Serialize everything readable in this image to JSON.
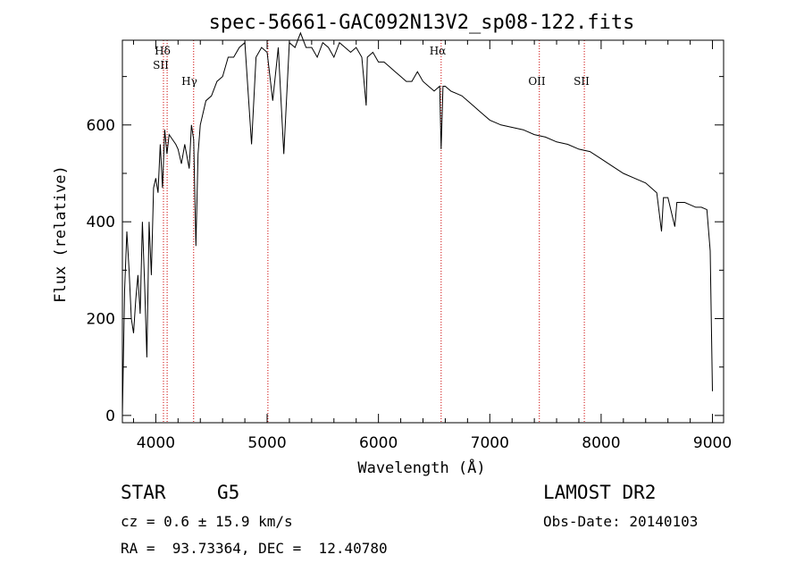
{
  "colors": {
    "axis": "#000000",
    "spectrum": "#000000",
    "marker_line": "#cc0000",
    "background": "#ffffff"
  },
  "chart_data": {
    "type": "line",
    "title": "spec-56661-GAC092N13V2_sp08-122.fits",
    "xlabel": "Wavelength (Å)",
    "ylabel": "Flux (relative)",
    "xlim": [
      3700,
      9100
    ],
    "ylim": [
      -15,
      775
    ],
    "x_ticks": [
      4000,
      5000,
      6000,
      7000,
      8000,
      9000
    ],
    "y_ticks": [
      0,
      200,
      400,
      600
    ],
    "series": [
      {
        "name": "flux",
        "x": [
          3700,
          3720,
          3740,
          3760,
          3780,
          3800,
          3820,
          3840,
          3860,
          3880,
          3900,
          3920,
          3940,
          3960,
          3980,
          4000,
          4020,
          4040,
          4060,
          4080,
          4100,
          4120,
          4150,
          4180,
          4200,
          4230,
          4260,
          4300,
          4320,
          4340,
          4360,
          4380,
          4400,
          4450,
          4500,
          4550,
          4600,
          4650,
          4700,
          4750,
          4800,
          4860,
          4900,
          4950,
          5000,
          5050,
          5100,
          5150,
          5200,
          5250,
          5300,
          5350,
          5400,
          5450,
          5500,
          5550,
          5600,
          5650,
          5700,
          5750,
          5800,
          5850,
          5890,
          5900,
          5950,
          6000,
          6050,
          6100,
          6150,
          6200,
          6250,
          6300,
          6350,
          6400,
          6450,
          6500,
          6550,
          6563,
          6580,
          6600,
          6650,
          6700,
          6750,
          6800,
          6850,
          6900,
          6950,
          7000,
          7100,
          7200,
          7300,
          7400,
          7500,
          7600,
          7700,
          7800,
          7900,
          8000,
          8100,
          8200,
          8300,
          8400,
          8450,
          8500,
          8542,
          8560,
          8600,
          8662,
          8680,
          8700,
          8750,
          8800,
          8850,
          8900,
          8950,
          8980,
          9000
        ],
        "y": [
          0,
          260,
          380,
          300,
          200,
          170,
          240,
          290,
          210,
          400,
          270,
          120,
          400,
          290,
          470,
          490,
          460,
          560,
          470,
          590,
          540,
          580,
          570,
          560,
          550,
          520,
          560,
          510,
          600,
          570,
          350,
          540,
          600,
          650,
          660,
          690,
          700,
          740,
          740,
          760,
          770,
          560,
          740,
          760,
          750,
          650,
          760,
          540,
          770,
          760,
          790,
          760,
          760,
          740,
          770,
          760,
          740,
          770,
          760,
          750,
          760,
          740,
          640,
          740,
          750,
          730,
          730,
          720,
          710,
          700,
          690,
          690,
          710,
          690,
          680,
          670,
          680,
          550,
          680,
          680,
          670,
          665,
          660,
          650,
          640,
          630,
          620,
          610,
          600,
          595,
          590,
          580,
          575,
          565,
          560,
          550,
          545,
          530,
          515,
          500,
          490,
          480,
          470,
          460,
          380,
          450,
          450,
          390,
          440,
          440,
          440,
          435,
          430,
          430,
          425,
          340,
          50
        ]
      }
    ],
    "markers": [
      {
        "label": "Hδ",
        "wavelength": 4102
      },
      {
        "label": "SII",
        "wavelength": 4069
      },
      {
        "label": "Hγ",
        "wavelength": 4340
      },
      {
        "label": "",
        "wavelength": 5007
      },
      {
        "label": "Hα",
        "wavelength": 6563
      },
      {
        "label": "OII",
        "wavelength": 7445
      },
      {
        "label": "SII",
        "wavelength": 7849
      }
    ]
  },
  "info": {
    "object_type": "STAR",
    "subclass": "G5",
    "survey": "LAMOST DR2",
    "redshift": "cz = 0.6 ± 15.9 km/s",
    "obs_date": "Obs-Date: 20140103",
    "coords": "RA =  93.73364, DEC =  12.40780"
  }
}
